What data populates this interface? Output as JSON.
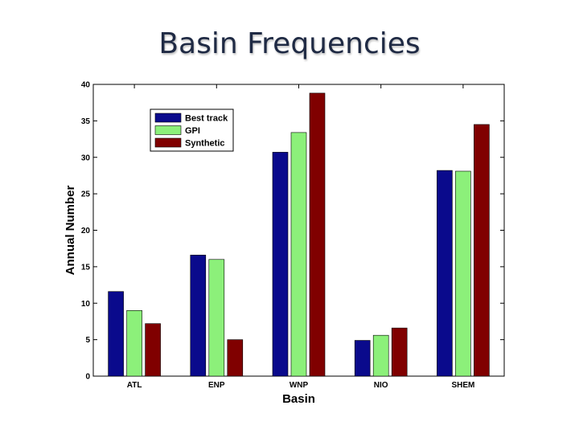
{
  "chart_data": {
    "type": "bar",
    "title": "Basin Frequencies",
    "xlabel": "Basin",
    "ylabel": "Annual Number",
    "categories": [
      "ATL",
      "ENP",
      "WNP",
      "NIO",
      "SHEM"
    ],
    "series": [
      {
        "name": "Best track",
        "values": [
          11.6,
          16.6,
          30.7,
          4.9,
          28.2
        ],
        "color": "#0a0a8c"
      },
      {
        "name": "GPI",
        "values": [
          9.0,
          16.0,
          33.4,
          5.6,
          28.1
        ],
        "color": "#8cf07a"
      },
      {
        "name": "Synthetic",
        "values": [
          7.2,
          5.0,
          38.8,
          6.6,
          34.5
        ],
        "color": "#800000"
      }
    ],
    "ylim": [
      0,
      40
    ],
    "yticks": [
      "0",
      "5",
      "10",
      "15",
      "20",
      "25",
      "30",
      "35",
      "40"
    ],
    "grid": false,
    "legend_position": "top-left"
  }
}
